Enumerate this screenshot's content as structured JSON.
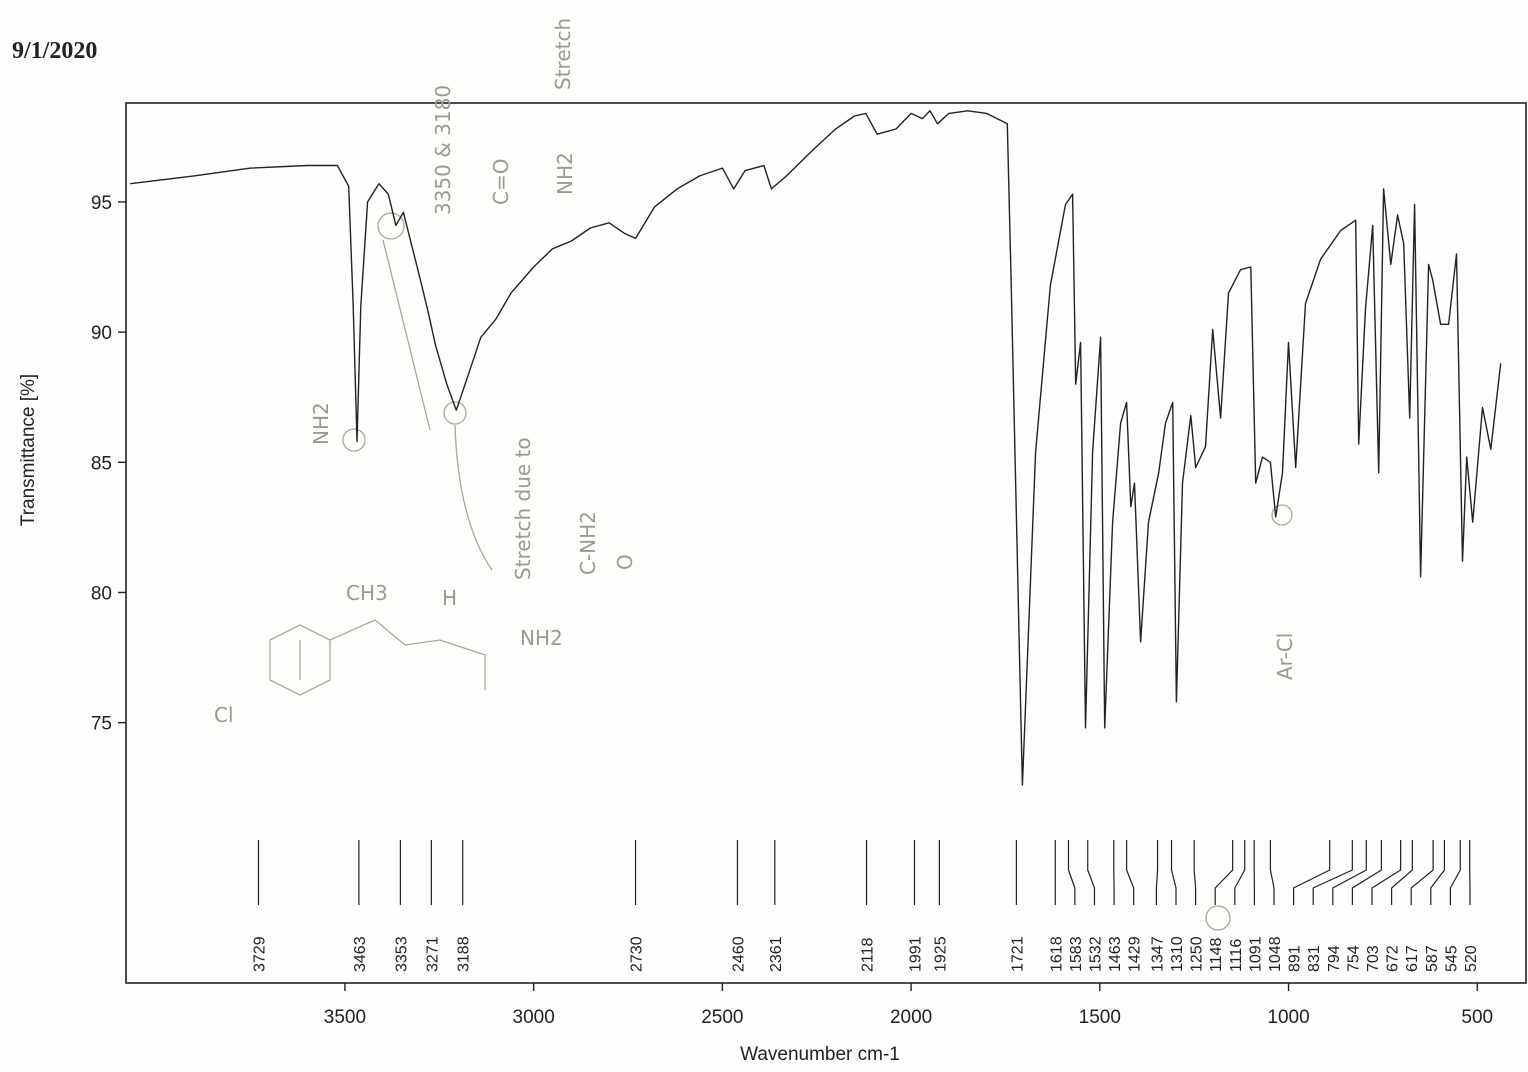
{
  "date": "9/1/2020",
  "chart_data": {
    "type": "line",
    "xlabel": "Wavenumber cm-1",
    "ylabel": "Transmittance [%]",
    "color": "#222222",
    "xlim": [
      4080,
      400
    ],
    "ylim": [
      65,
      98.8
    ],
    "xticks": [
      3500,
      3000,
      2500,
      2000,
      1500,
      1000,
      500
    ],
    "yticks": [
      75,
      80,
      85,
      90,
      95
    ],
    "x": [
      4069,
      3900,
      3750,
      3600,
      3520,
      3490,
      3478,
      3468,
      3458,
      3440,
      3410,
      3385,
      3365,
      3345,
      3300,
      3280,
      3260,
      3230,
      3205,
      3170,
      3140,
      3100,
      3060,
      3000,
      2950,
      2900,
      2850,
      2800,
      2760,
      2730,
      2680,
      2620,
      2560,
      2500,
      2470,
      2440,
      2390,
      2370,
      2330,
      2260,
      2200,
      2150,
      2120,
      2090,
      2040,
      2000,
      1970,
      1950,
      1930,
      1900,
      1850,
      1800,
      1745,
      1735,
      1705,
      1670,
      1631,
      1591,
      1572,
      1564,
      1551,
      1538,
      1519,
      1498,
      1487,
      1466,
      1445,
      1429,
      1418,
      1408,
      1392,
      1371,
      1344,
      1326,
      1307,
      1297,
      1281,
      1259,
      1246,
      1220,
      1201,
      1180,
      1159,
      1127,
      1100,
      1087,
      1069,
      1048,
      1034,
      1016,
      1000,
      981,
      955,
      915,
      862,
      822,
      814,
      796,
      777,
      761,
      748,
      729,
      711,
      695,
      679,
      666,
      650,
      629,
      618,
      597,
      576,
      555,
      539,
      528,
      512,
      486,
      464,
      438
    ],
    "values": [
      95.7,
      96.0,
      96.3,
      96.4,
      96.4,
      95.6,
      91.0,
      85.8,
      91.0,
      95.0,
      95.7,
      95.3,
      94.1,
      94.6,
      92.0,
      90.8,
      89.5,
      88.0,
      87.0,
      88.5,
      89.8,
      90.5,
      91.5,
      92.5,
      93.2,
      93.5,
      94.0,
      94.2,
      93.8,
      93.6,
      94.8,
      95.5,
      96.0,
      96.3,
      95.5,
      96.2,
      96.4,
      95.5,
      96.0,
      97.0,
      97.8,
      98.3,
      98.4,
      97.6,
      97.8,
      98.4,
      98.2,
      98.5,
      98.0,
      98.4,
      98.5,
      98.4,
      98.0,
      92.0,
      72.6,
      85.4,
      91.8,
      94.9,
      95.3,
      88.0,
      89.6,
      74.8,
      85.4,
      89.8,
      74.8,
      82.7,
      86.5,
      87.3,
      83.3,
      84.2,
      78.1,
      82.7,
      84.6,
      86.5,
      87.3,
      75.8,
      84.2,
      86.8,
      84.8,
      85.6,
      90.1,
      86.7,
      91.5,
      92.4,
      92.5,
      84.2,
      85.2,
      85.0,
      82.9,
      84.6,
      89.6,
      84.8,
      91.1,
      92.8,
      93.9,
      94.3,
      85.7,
      90.9,
      94.1,
      84.6,
      95.5,
      92.6,
      94.5,
      93.4,
      86.7,
      94.9,
      80.6,
      92.6,
      92.0,
      90.3,
      90.3,
      93.0,
      81.2,
      85.2,
      82.7,
      87.1,
      85.5,
      88.8
    ],
    "peaks": [
      3729,
      3463,
      3353,
      3271,
      3188,
      2730,
      2460,
      2361,
      2118,
      1991,
      1925,
      1721,
      1618,
      1583,
      1532,
      1463,
      1429,
      1347,
      1310,
      1250,
      1148,
      1116,
      1091,
      1048,
      891,
      831,
      794,
      754,
      703,
      672,
      617,
      587,
      545,
      520
    ]
  },
  "annotations": {
    "nh2_peak": "NH2",
    "stretch_pair": "3350 & 3180",
    "carbonyl": "C=O",
    "carbonyl_nh2": "NH2",
    "stretch": "Stretch",
    "stretch_due": "Stretch due to",
    "c_nh2": "C-NH2",
    "oxygen": "O",
    "ar_cl": "Ar-Cl",
    "ch3": "CH3",
    "h": "H",
    "nh2_amide": "NH2",
    "cl": "Cl"
  }
}
